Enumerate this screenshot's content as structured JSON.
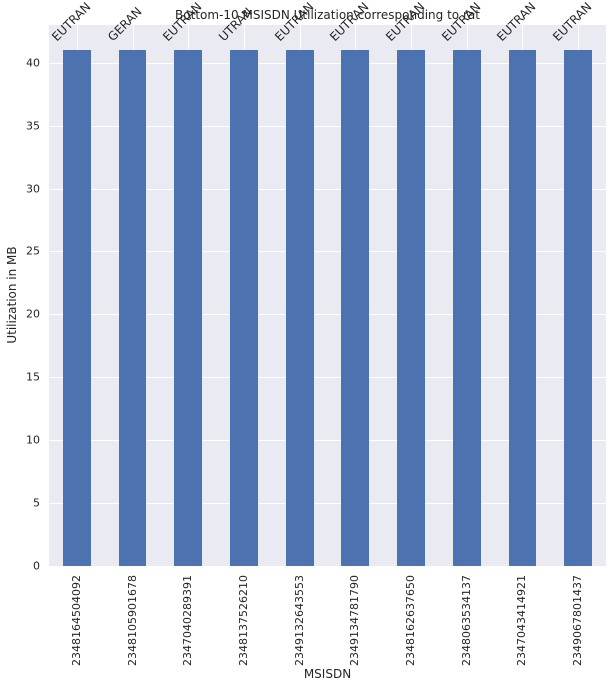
{
  "chart_data": {
    "type": "bar",
    "title": "Bottom-10 MSISDN Utilization corresponding to rat",
    "xlabel": "MSISDN",
    "ylabel": "Utilization in MB",
    "categories": [
      "2348164504092",
      "2348105901678",
      "2347040289391",
      "2348137526210",
      "2349132643553",
      "2349134781790",
      "2348162637650",
      "2348063534137",
      "2347043414921",
      "2349067801437"
    ],
    "values": [
      41,
      41,
      41,
      41,
      41,
      41,
      41,
      41,
      41,
      41
    ],
    "bar_labels": [
      "EUTRAN",
      "GERAN",
      "EUTRAN",
      "UTRAN",
      "EUTRAN",
      "EUTRAN",
      "EUTRAN",
      "EUTRAN",
      "EUTRAN",
      "EUTRAN"
    ],
    "yticks": [
      0,
      5,
      10,
      15,
      20,
      25,
      30,
      35,
      40
    ],
    "ylim": [
      0,
      43
    ],
    "grid": true,
    "bar_color": "#4c72b0",
    "background": "#eaeaf2"
  }
}
